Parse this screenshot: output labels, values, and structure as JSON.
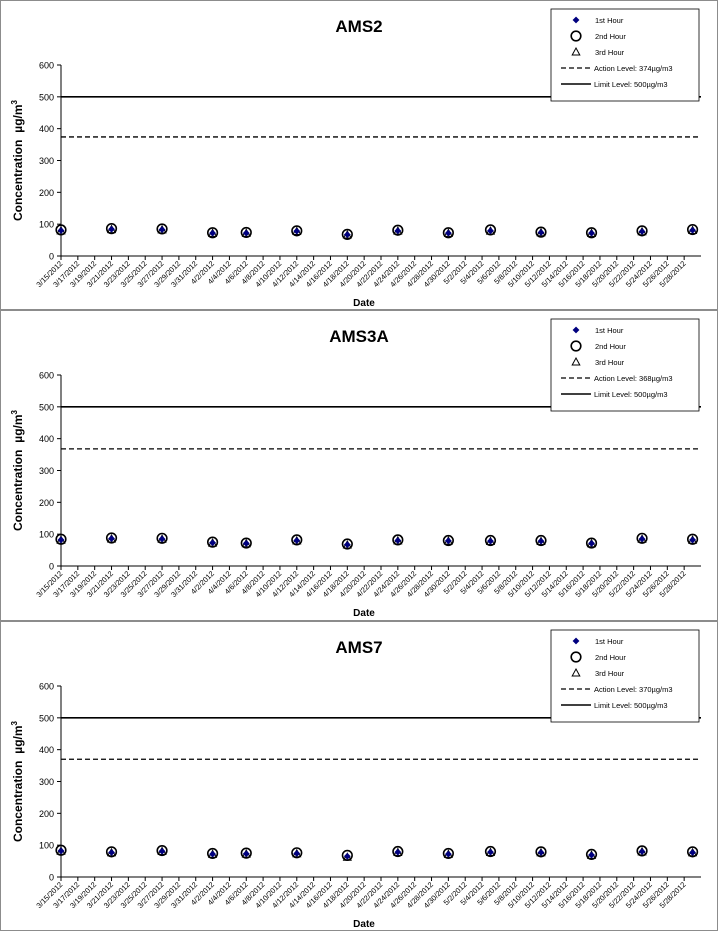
{
  "colors": {
    "marker1": "#00007f",
    "marker_other": "#000000",
    "line": "#000000",
    "grid_border": "#000000"
  },
  "chart_data": [
    {
      "type": "scatter",
      "title": "AMS2",
      "xlabel": "Date",
      "ylabel": "Concentration",
      "ylabel_unit": "µg/m",
      "ylabel_unit_sup": "3",
      "ylim": [
        0,
        600
      ],
      "yticks": [
        0,
        100,
        200,
        300,
        400,
        500,
        600
      ],
      "xlim": [
        "3/15/2012",
        "5/30/2012"
      ],
      "xticks": [
        "3/15/2012",
        "3/17/2012",
        "3/19/2012",
        "3/21/2012",
        "3/23/2012",
        "3/25/2012",
        "3/27/2012",
        "3/29/2012",
        "3/31/2012",
        "4/2/2012",
        "4/4/2012",
        "4/6/2012",
        "4/8/2012",
        "4/10/2012",
        "4/12/2012",
        "4/14/2012",
        "4/16/2012",
        "4/18/2012",
        "4/20/2012",
        "4/22/2012",
        "4/24/2012",
        "4/26/2012",
        "4/28/2012",
        "4/30/2012",
        "5/2/2012",
        "5/4/2012",
        "5/6/2012",
        "5/8/2012",
        "5/10/2012",
        "5/12/2012",
        "5/14/2012",
        "5/16/2012",
        "5/18/2012",
        "5/20/2012",
        "5/22/2012",
        "5/24/2012",
        "5/26/2012",
        "5/28/2012"
      ],
      "legend_position": "top-right",
      "series": [
        {
          "name": "1st Hour",
          "marker": "diamond-filled",
          "x": [
            "3/15/2012",
            "3/21/2012",
            "3/27/2012",
            "4/2/2012",
            "4/6/2012",
            "4/12/2012",
            "4/18/2012",
            "4/24/2012",
            "4/30/2012",
            "5/5/2012",
            "5/11/2012",
            "5/17/2012",
            "5/23/2012",
            "5/29/2012"
          ],
          "y": [
            80,
            84,
            83,
            72,
            72,
            78,
            67,
            79,
            72,
            79,
            74,
            72,
            77,
            81
          ]
        },
        {
          "name": "2nd Hour",
          "marker": "circle-open",
          "x": [
            "3/15/2012",
            "3/21/2012",
            "3/27/2012",
            "4/2/2012",
            "4/6/2012",
            "4/12/2012",
            "4/18/2012",
            "4/24/2012",
            "4/30/2012",
            "5/5/2012",
            "5/11/2012",
            "5/17/2012",
            "5/23/2012",
            "5/29/2012"
          ],
          "y": [
            82,
            86,
            85,
            73,
            74,
            79,
            68,
            81,
            73,
            82,
            75,
            73,
            79,
            83
          ]
        },
        {
          "name": "3rd Hour",
          "marker": "triangle-open",
          "x": [
            "3/15/2012",
            "3/21/2012",
            "3/27/2012",
            "4/2/2012",
            "4/6/2012",
            "4/12/2012",
            "4/18/2012",
            "4/24/2012",
            "4/30/2012",
            "5/5/2012",
            "5/11/2012",
            "5/17/2012",
            "5/23/2012",
            "5/29/2012"
          ],
          "y": [
            79,
            83,
            82,
            71,
            71,
            77,
            66,
            78,
            71,
            78,
            73,
            71,
            76,
            80
          ]
        }
      ],
      "reference_lines": [
        {
          "name": "Action Level: 374µg/m3",
          "value": 374,
          "style": "dashed"
        },
        {
          "name": "Limit Level: 500µg/m3",
          "value": 500,
          "style": "solid"
        }
      ]
    },
    {
      "type": "scatter",
      "title": "AMS3A",
      "xlabel": "Date",
      "ylabel": "Concentration",
      "ylabel_unit": "µg/m",
      "ylabel_unit_sup": "3",
      "ylim": [
        0,
        600
      ],
      "yticks": [
        0,
        100,
        200,
        300,
        400,
        500,
        600
      ],
      "xlim": [
        "3/15/2012",
        "5/30/2012"
      ],
      "xticks": [
        "3/15/2012",
        "3/17/2012",
        "3/19/2012",
        "3/21/2012",
        "3/23/2012",
        "3/25/2012",
        "3/27/2012",
        "3/29/2012",
        "3/31/2012",
        "4/2/2012",
        "4/4/2012",
        "4/6/2012",
        "4/8/2012",
        "4/10/2012",
        "4/12/2012",
        "4/14/2012",
        "4/16/2012",
        "4/18/2012",
        "4/20/2012",
        "4/22/2012",
        "4/24/2012",
        "4/26/2012",
        "4/28/2012",
        "4/30/2012",
        "5/2/2012",
        "5/4/2012",
        "5/6/2012",
        "5/8/2012",
        "5/10/2012",
        "5/12/2012",
        "5/14/2012",
        "5/16/2012",
        "5/18/2012",
        "5/20/2012",
        "5/22/2012",
        "5/24/2012",
        "5/26/2012",
        "5/28/2012"
      ],
      "legend_position": "top-right",
      "series": [
        {
          "name": "1st Hour",
          "marker": "diamond-filled",
          "x": [
            "3/15/2012",
            "3/21/2012",
            "3/27/2012",
            "4/2/2012",
            "4/6/2012",
            "4/12/2012",
            "4/18/2012",
            "4/24/2012",
            "4/30/2012",
            "5/5/2012",
            "5/11/2012",
            "5/17/2012",
            "5/23/2012",
            "5/29/2012"
          ],
          "y": [
            82,
            86,
            85,
            73,
            71,
            80,
            67,
            80,
            79,
            78,
            78,
            71,
            85,
            82
          ]
        },
        {
          "name": "2nd Hour",
          "marker": "circle-open",
          "x": [
            "3/15/2012",
            "3/21/2012",
            "3/27/2012",
            "4/2/2012",
            "4/6/2012",
            "4/12/2012",
            "4/18/2012",
            "4/24/2012",
            "4/30/2012",
            "5/5/2012",
            "5/11/2012",
            "5/17/2012",
            "5/23/2012",
            "5/29/2012"
          ],
          "y": [
            84,
            88,
            87,
            75,
            72,
            82,
            69,
            82,
            80,
            80,
            80,
            72,
            87,
            84
          ]
        },
        {
          "name": "3rd Hour",
          "marker": "triangle-open",
          "x": [
            "3/15/2012",
            "3/21/2012",
            "3/27/2012",
            "4/2/2012",
            "4/6/2012",
            "4/12/2012",
            "4/18/2012",
            "4/24/2012",
            "4/30/2012",
            "5/5/2012",
            "5/11/2012",
            "5/17/2012",
            "5/23/2012",
            "5/29/2012"
          ],
          "y": [
            81,
            85,
            84,
            72,
            70,
            79,
            66,
            79,
            78,
            77,
            77,
            70,
            84,
            81
          ]
        }
      ],
      "reference_lines": [
        {
          "name": "Action Level: 368µg/m3",
          "value": 368,
          "style": "dashed"
        },
        {
          "name": "Limit Level: 500µg/m3",
          "value": 500,
          "style": "solid"
        }
      ]
    },
    {
      "type": "scatter",
      "title": "AMS7",
      "xlabel": "Date",
      "ylabel": "Concentration",
      "ylabel_unit": "µg/m",
      "ylabel_unit_sup": "3",
      "ylim": [
        0,
        600
      ],
      "yticks": [
        0,
        100,
        200,
        300,
        400,
        500,
        600
      ],
      "xlim": [
        "3/15/2012",
        "5/30/2012"
      ],
      "xticks": [
        "3/15/2012",
        "3/17/2012",
        "3/19/2012",
        "3/21/2012",
        "3/23/2012",
        "3/25/2012",
        "3/27/2012",
        "3/29/2012",
        "3/31/2012",
        "4/2/2012",
        "4/4/2012",
        "4/6/2012",
        "4/8/2012",
        "4/10/2012",
        "4/12/2012",
        "4/14/2012",
        "4/16/2012",
        "4/18/2012",
        "4/20/2012",
        "4/22/2012",
        "4/24/2012",
        "4/26/2012",
        "4/28/2012",
        "4/30/2012",
        "5/2/2012",
        "5/4/2012",
        "5/6/2012",
        "5/8/2012",
        "5/10/2012",
        "5/12/2012",
        "5/14/2012",
        "5/16/2012",
        "5/18/2012",
        "5/20/2012",
        "5/22/2012",
        "5/24/2012",
        "5/26/2012",
        "5/28/2012"
      ],
      "legend_position": "top-right",
      "series": [
        {
          "name": "1st Hour",
          "marker": "diamond-filled",
          "x": [
            "3/15/2012",
            "3/21/2012",
            "3/27/2012",
            "4/2/2012",
            "4/6/2012",
            "4/12/2012",
            "4/18/2012",
            "4/24/2012",
            "4/30/2012",
            "5/5/2012",
            "5/11/2012",
            "5/17/2012",
            "5/23/2012",
            "5/29/2012"
          ],
          "y": [
            82,
            77,
            81,
            72,
            73,
            74,
            65,
            78,
            72,
            78,
            77,
            69,
            80,
            77
          ]
        },
        {
          "name": "2nd Hour",
          "marker": "circle-open",
          "x": [
            "3/15/2012",
            "3/21/2012",
            "3/27/2012",
            "4/2/2012",
            "4/6/2012",
            "4/12/2012",
            "4/18/2012",
            "4/24/2012",
            "4/30/2012",
            "5/5/2012",
            "5/11/2012",
            "5/17/2012",
            "5/23/2012",
            "5/29/2012"
          ],
          "y": [
            84,
            79,
            83,
            74,
            75,
            76,
            68,
            80,
            74,
            80,
            79,
            71,
            82,
            79
          ]
        },
        {
          "name": "3rd Hour",
          "marker": "triangle-open",
          "x": [
            "3/15/2012",
            "3/21/2012",
            "3/27/2012",
            "4/2/2012",
            "4/6/2012",
            "4/12/2012",
            "4/18/2012",
            "4/24/2012",
            "4/30/2012",
            "5/5/2012",
            "5/11/2012",
            "5/17/2012",
            "5/23/2012",
            "5/29/2012"
          ],
          "y": [
            81,
            76,
            80,
            71,
            72,
            73,
            62,
            77,
            71,
            77,
            76,
            68,
            79,
            76
          ]
        }
      ],
      "reference_lines": [
        {
          "name": "Action Level: 370µg/m3",
          "value": 370,
          "style": "dashed"
        },
        {
          "name": "Limit Level: 500µg/m3",
          "value": 500,
          "style": "solid"
        }
      ]
    }
  ]
}
